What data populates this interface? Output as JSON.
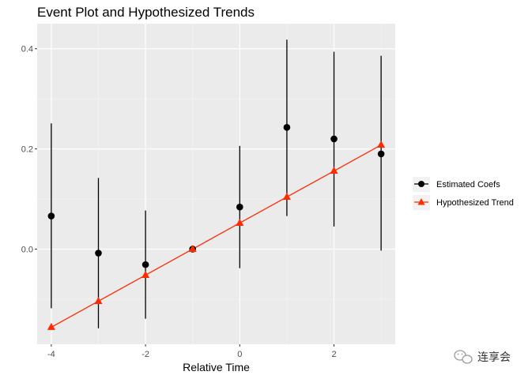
{
  "chart_data": {
    "type": "scatter",
    "title": "Event Plot and Hypothesized Trends",
    "xlabel": "Relative Time",
    "ylabel": "",
    "xlim": [
      -4.3,
      3.3
    ],
    "ylim": [
      -0.19,
      0.45
    ],
    "x_ticks": [
      -4,
      -2,
      0,
      2
    ],
    "x_tick_labels": [
      "-4",
      "-2",
      "0",
      "2"
    ],
    "y_ticks": [
      0.0,
      0.2,
      0.4
    ],
    "y_tick_labels": [
      "0.0",
      "0.2",
      "0.4"
    ],
    "grid": true,
    "legend_position": "right",
    "series": [
      {
        "name": "Estimated Coefs",
        "color": "#000000",
        "marker": "circle",
        "points": [
          {
            "x": -4,
            "y": 0.066,
            "lower": -0.118,
            "upper": 0.251
          },
          {
            "x": -3,
            "y": -0.008,
            "lower": -0.158,
            "upper": 0.142
          },
          {
            "x": -2,
            "y": -0.031,
            "lower": -0.139,
            "upper": 0.077
          },
          {
            "x": -1,
            "y": 0.0,
            "lower": 0.0,
            "upper": 0.0
          },
          {
            "x": 0,
            "y": 0.084,
            "lower": -0.038,
            "upper": 0.206
          },
          {
            "x": 1,
            "y": 0.243,
            "lower": 0.066,
            "upper": 0.418
          },
          {
            "x": 2,
            "y": 0.22,
            "lower": 0.045,
            "upper": 0.394
          },
          {
            "x": 3,
            "y": 0.19,
            "lower": -0.003,
            "upper": 0.386
          }
        ]
      },
      {
        "name": "Hypothesized Trend",
        "color": "#ff2a00",
        "marker": "triangle",
        "points": [
          {
            "x": -4,
            "y": -0.156
          },
          {
            "x": -3,
            "y": -0.104
          },
          {
            "x": -2,
            "y": -0.052
          },
          {
            "x": -1,
            "y": 0.0
          },
          {
            "x": 0,
            "y": 0.052
          },
          {
            "x": 1,
            "y": 0.104
          },
          {
            "x": 2,
            "y": 0.156
          },
          {
            "x": 3,
            "y": 0.208
          }
        ]
      }
    ]
  },
  "watermark": {
    "icon": "wechat-icon",
    "text": "连享会"
  }
}
